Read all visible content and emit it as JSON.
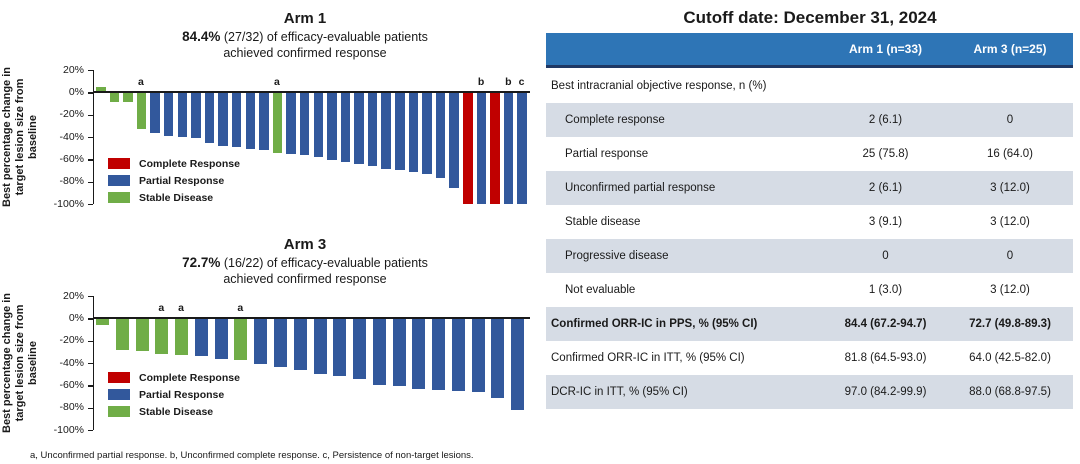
{
  "colors": {
    "complete_response": "#C00000",
    "partial_response": "#32589C",
    "stable_disease": "#70AD47",
    "highlight_orange": "#ED7325",
    "axis": "#1a1a1a",
    "table_header_bg": "#2E75B6",
    "table_header_border": "#1F3864",
    "table_band_bg": "#D6DCE5"
  },
  "chart_data": [
    {
      "type": "bar",
      "title": "Arm 1",
      "subtitle_highlight": "84.4%",
      "subtitle_rest": " (27/32) of efficacy-evaluable patients",
      "subtitle_line2": "achieved confirmed response",
      "ylabel": "Best percentage change in\ntarget lesion size from\nbaseline",
      "ylim": [
        -100,
        20
      ],
      "yticks": [
        "20%",
        "0%",
        "-20%",
        "-40%",
        "-60%",
        "-80%",
        "-100%"
      ],
      "legend": [
        {
          "label": "Complete Response",
          "category": "complete_response"
        },
        {
          "label": "Partial Response",
          "category": "partial_response"
        },
        {
          "label": "Stable Disease",
          "category": "stable_disease"
        }
      ],
      "bars": [
        {
          "value": 5,
          "category": "stable_disease"
        },
        {
          "value": -9,
          "category": "stable_disease"
        },
        {
          "value": -9,
          "category": "stable_disease"
        },
        {
          "value": -33,
          "category": "stable_disease",
          "note": "a"
        },
        {
          "value": -36,
          "category": "partial_response"
        },
        {
          "value": -39,
          "category": "partial_response"
        },
        {
          "value": -40,
          "category": "partial_response"
        },
        {
          "value": -41,
          "category": "partial_response"
        },
        {
          "value": -45,
          "category": "partial_response"
        },
        {
          "value": -48,
          "category": "partial_response"
        },
        {
          "value": -49,
          "category": "partial_response"
        },
        {
          "value": -51,
          "category": "partial_response"
        },
        {
          "value": -52,
          "category": "partial_response"
        },
        {
          "value": -54,
          "category": "stable_disease",
          "note": "a"
        },
        {
          "value": -55,
          "category": "partial_response"
        },
        {
          "value": -56,
          "category": "partial_response"
        },
        {
          "value": -58,
          "category": "partial_response"
        },
        {
          "value": -61,
          "category": "partial_response"
        },
        {
          "value": -62,
          "category": "partial_response"
        },
        {
          "value": -64,
          "category": "partial_response"
        },
        {
          "value": -66,
          "category": "partial_response"
        },
        {
          "value": -69,
          "category": "partial_response"
        },
        {
          "value": -70,
          "category": "partial_response"
        },
        {
          "value": -71,
          "category": "partial_response"
        },
        {
          "value": -73,
          "category": "partial_response"
        },
        {
          "value": -77,
          "category": "partial_response"
        },
        {
          "value": -86,
          "category": "partial_response"
        },
        {
          "value": -100,
          "category": "complete_response"
        },
        {
          "value": -100,
          "category": "partial_response",
          "note": "b"
        },
        {
          "value": -100,
          "category": "complete_response"
        },
        {
          "value": -100,
          "category": "partial_response",
          "note": "b"
        },
        {
          "value": -100,
          "category": "partial_response",
          "note": "c"
        }
      ]
    },
    {
      "type": "bar",
      "title": "Arm 3",
      "subtitle_highlight": "72.7%",
      "subtitle_rest": " (16/22) of efficacy-evaluable patients",
      "subtitle_line2": "achieved confirmed response",
      "ylabel": "Best percentage change in\ntarget lesion size from\nbaseline",
      "ylim": [
        -100,
        20
      ],
      "yticks": [
        "20%",
        "0%",
        "-20%",
        "-40%",
        "-60%",
        "-80%",
        "-100%"
      ],
      "legend": [
        {
          "label": "Complete Response",
          "category": "complete_response"
        },
        {
          "label": "Partial Response",
          "category": "partial_response"
        },
        {
          "label": "Stable Disease",
          "category": "stable_disease"
        }
      ],
      "bars": [
        {
          "value": -6,
          "category": "stable_disease"
        },
        {
          "value": -28,
          "category": "stable_disease"
        },
        {
          "value": -29,
          "category": "stable_disease"
        },
        {
          "value": -32,
          "category": "stable_disease",
          "note": "a"
        },
        {
          "value": -33,
          "category": "stable_disease",
          "note": "a"
        },
        {
          "value": -34,
          "category": "partial_response"
        },
        {
          "value": -36,
          "category": "partial_response"
        },
        {
          "value": -37,
          "category": "stable_disease",
          "note": "a"
        },
        {
          "value": -41,
          "category": "partial_response"
        },
        {
          "value": -44,
          "category": "partial_response"
        },
        {
          "value": -46,
          "category": "partial_response"
        },
        {
          "value": -50,
          "category": "partial_response"
        },
        {
          "value": -52,
          "category": "partial_response"
        },
        {
          "value": -54,
          "category": "partial_response"
        },
        {
          "value": -60,
          "category": "partial_response"
        },
        {
          "value": -61,
          "category": "partial_response"
        },
        {
          "value": -63,
          "category": "partial_response"
        },
        {
          "value": -64,
          "category": "partial_response"
        },
        {
          "value": -65,
          "category": "partial_response"
        },
        {
          "value": -66,
          "category": "partial_response"
        },
        {
          "value": -71,
          "category": "partial_response"
        },
        {
          "value": -82,
          "category": "partial_response"
        }
      ]
    }
  ],
  "footnote": "a, Unconfirmed partial response. b, Unconfirmed complete response. c, Persistence of non-target lesions.",
  "table": {
    "title": "Cutoff date: December 31, 2024",
    "columns": [
      "Arm 1 (n=33)",
      "Arm 3 (n=25)"
    ],
    "section_header": "Best intracranial objective response, n (%)",
    "rows": [
      {
        "label": "Complete response",
        "values": [
          "2 (6.1)",
          "0"
        ],
        "indent": true
      },
      {
        "label": "Partial response",
        "values": [
          "25 (75.8)",
          "16 (64.0)"
        ],
        "indent": true
      },
      {
        "label": "Unconfirmed partial response",
        "values": [
          "2 (6.1)",
          "3 (12.0)"
        ],
        "indent": true
      },
      {
        "label": "Stable disease",
        "values": [
          "3 (9.1)",
          "3 (12.0)"
        ],
        "indent": true
      },
      {
        "label": "Progressive disease",
        "values": [
          "0",
          "0"
        ],
        "indent": true
      },
      {
        "label": "Not evaluable",
        "values": [
          "1 (3.0)",
          "3 (12.0)"
        ],
        "indent": true
      },
      {
        "label": "Confirmed ORR-IC in PPS, % (95% CI)",
        "values": [
          "84.4 (67.2-94.7)",
          "72.7 (49.8-89.3)"
        ],
        "bold": true
      },
      {
        "label": "Confirmed ORR-IC in ITT, % (95% CI)",
        "values": [
          "81.8 (64.5-93.0)",
          "64.0 (42.5-82.0)"
        ]
      },
      {
        "label": "DCR-IC in ITT, % (95% CI)",
        "values": [
          "97.0 (84.2-99.9)",
          "88.0 (68.8-97.5)"
        ]
      }
    ]
  }
}
